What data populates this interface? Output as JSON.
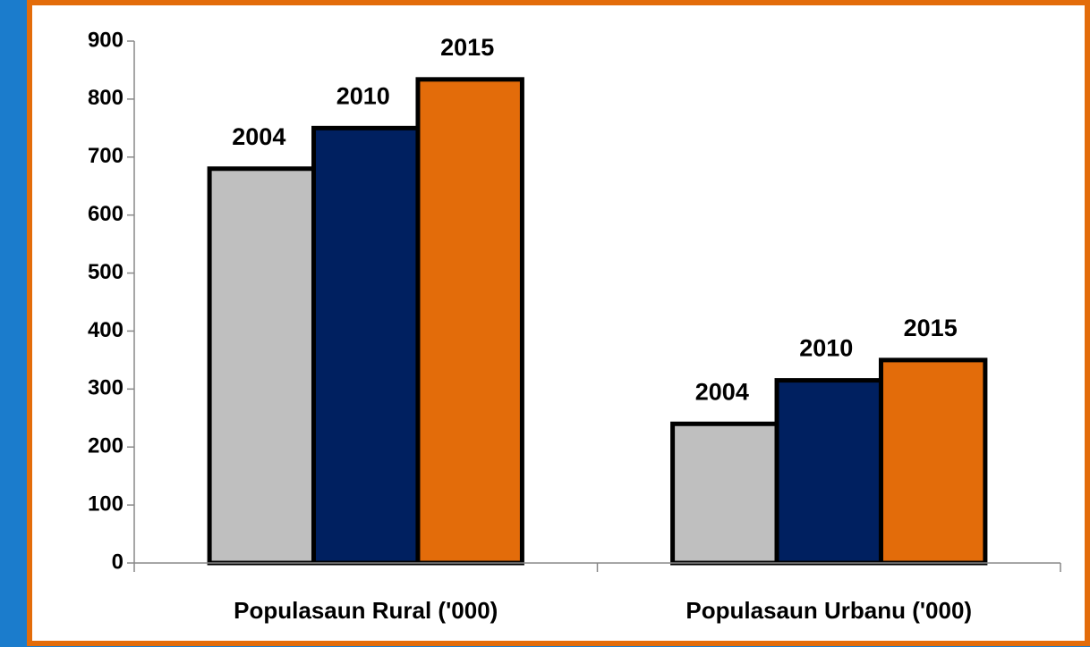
{
  "chart_data": {
    "type": "bar",
    "categories": [
      "Populasaun Rural ('000)",
      "Populasaun Urbanu ('000)"
    ],
    "series": [
      {
        "name": "2004",
        "color": "#bfbfbf",
        "values": [
          680,
          240
        ]
      },
      {
        "name": "2010",
        "color": "#002060",
        "values": [
          750,
          315
        ]
      },
      {
        "name": "2015",
        "color": "#e36c0a",
        "values": [
          834,
          350
        ]
      }
    ],
    "ylim": [
      0,
      900
    ],
    "yticks": [
      0,
      100,
      200,
      300,
      400,
      500,
      600,
      700,
      800,
      900
    ],
    "grid": false
  }
}
